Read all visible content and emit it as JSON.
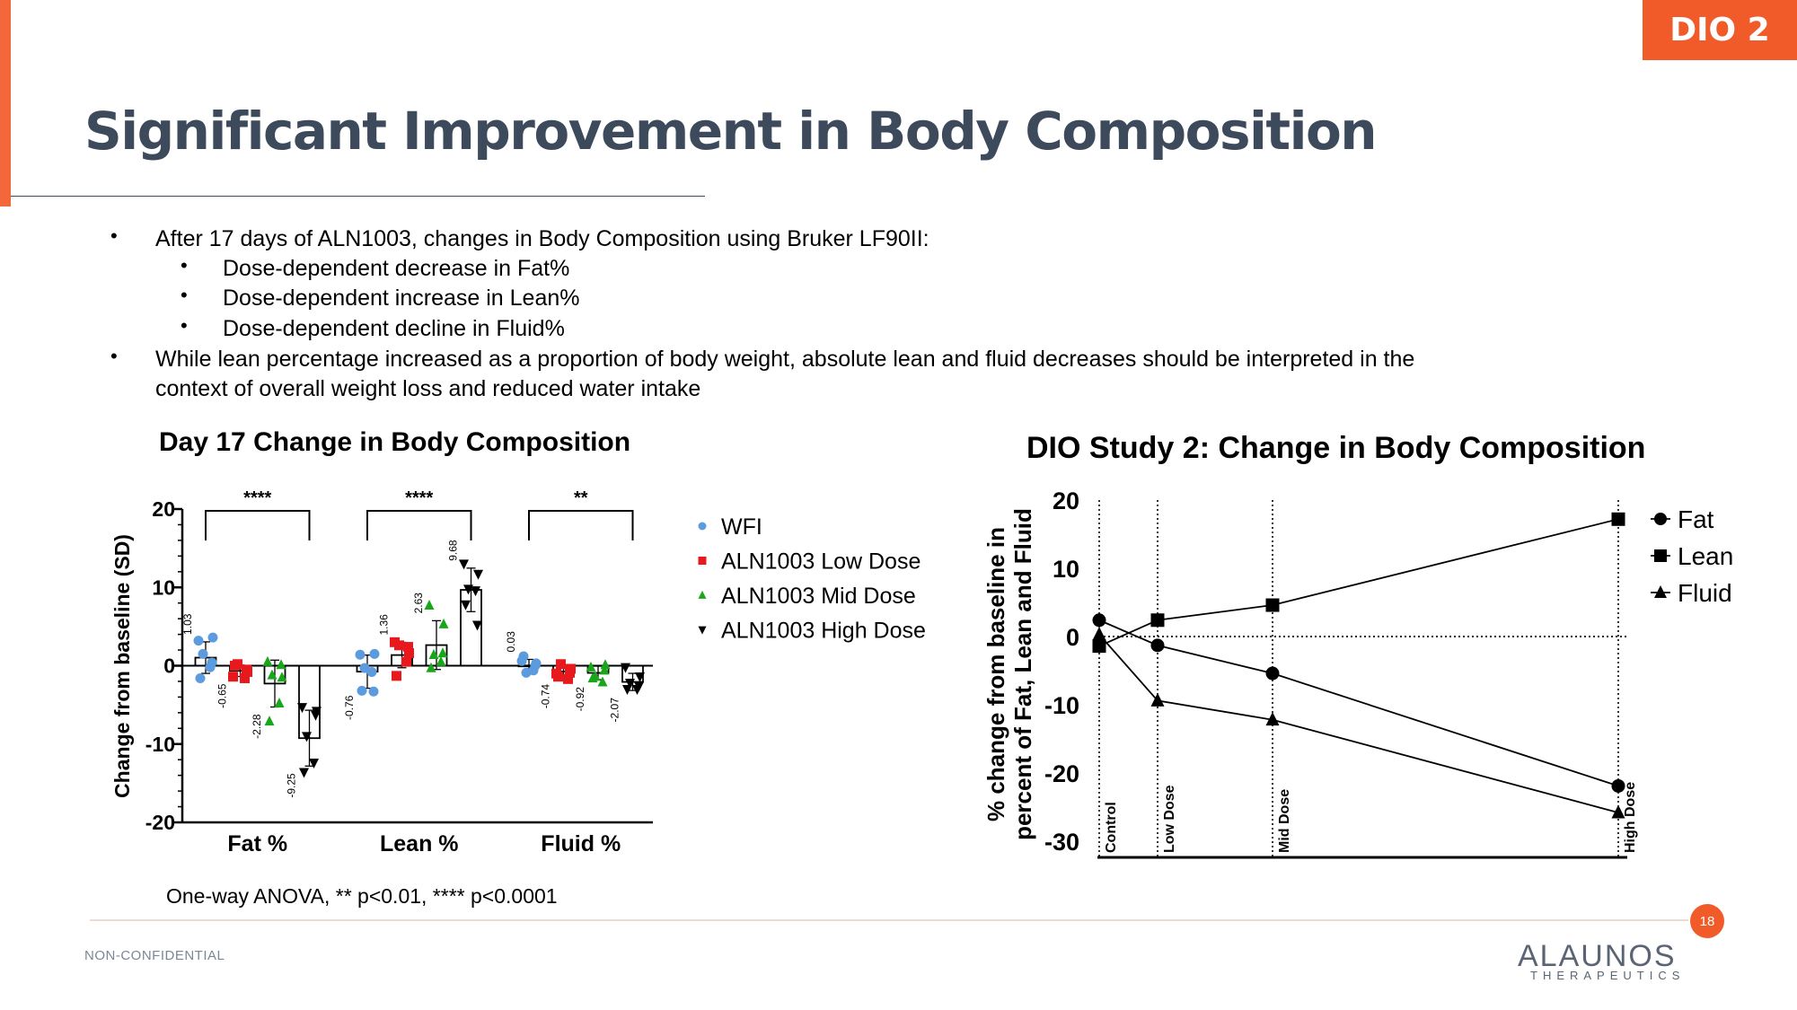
{
  "tag": "DIO 2",
  "title": "Significant Improvement in Body Composition",
  "bullets": {
    "b1": "After 17 days of ALN1003, changes in Body Composition using Bruker LF90II:",
    "s1": "Dose-dependent decrease in Fat%",
    "s2": "Dose-dependent increase in Lean%",
    "s3": "Dose-dependent decline in Fluid%",
    "b2_line1": "While lean percentage increased as a proportion of body weight, absolute lean and fluid decreases should be interpreted in the",
    "b2_line2": "context of overall weight loss and reduced water intake"
  },
  "footnote": "One-way ANOVA, ** p<0.01, **** p<0.0001",
  "footer": {
    "label": "NON-CONFIDENTIAL",
    "page": "18",
    "logo": "ALAUNOS",
    "logo_sub": "THERAPEUTICS"
  },
  "colors": {
    "accent": "#f15a29",
    "title": "#3d4a5c",
    "wfi": "#5b9bde",
    "low": "#e8191c",
    "mid": "#1aa61a",
    "high": "#000000"
  },
  "chart_data": [
    {
      "type": "bar",
      "title": "Day 17 Change in Body Composition",
      "ylabel": "Change from baseline (SD)",
      "ylim": [
        -20,
        20
      ],
      "yticks": [
        -20,
        -10,
        0,
        10,
        20
      ],
      "categories": [
        "Fat %",
        "Lean %",
        "Fluid %"
      ],
      "series": [
        {
          "name": "WFI",
          "marker": "circle",
          "values": [
            1.03,
            -0.76,
            0.03
          ],
          "points": [
            [
              3.2,
              3.6,
              1.5,
              -0.2,
              -1.6,
              0.4
            ],
            [
              1.4,
              1.5,
              -0.3,
              -0.8,
              -3.2,
              -3.3
            ],
            [
              0.6,
              0.3,
              -0.9,
              -0.6,
              1.2,
              0.0
            ]
          ]
        },
        {
          "name": "ALN1003 Low Dose",
          "marker": "square",
          "values": [
            -0.65,
            1.36,
            -0.74
          ],
          "points": [
            [
              -1.4,
              -0.8,
              0.2,
              -1.6,
              0.0,
              -0.5
            ],
            [
              3.0,
              1.6,
              2.6,
              0.5,
              -1.3,
              2.4
            ],
            [
              -1.0,
              -0.4,
              0.2,
              -1.7,
              -1.4,
              -0.9
            ]
          ]
        },
        {
          "name": "ALN1003 Mid Dose",
          "marker": "triangle",
          "values": [
            -2.28,
            2.63,
            -0.92
          ],
          "points": [
            [
              0.5,
              -1.5,
              -1.2,
              -4.8,
              -7.1,
              0.1
            ],
            [
              7.7,
              5.3,
              1.4,
              0.5,
              -0.3,
              1.6
            ],
            [
              -0.2,
              0.1,
              -1.4,
              -2.1,
              -1.6,
              -0.6
            ]
          ]
        },
        {
          "name": "ALN1003 High Dose",
          "marker": "triangle-down",
          "values": [
            -9.25,
            9.68,
            -2.07
          ],
          "points": [
            [
              -5.3,
              -5.8,
              -9.0,
              -12.4,
              -13.6,
              -6.3
            ],
            [
              13.0,
              11.7,
              9.8,
              9.6,
              7.8,
              5.2
            ],
            [
              -0.2,
              -1.4,
              -2.2,
              -3.0,
              -3.0,
              -2.6
            ]
          ]
        }
      ],
      "significance": [
        "****",
        "****",
        "**"
      ]
    },
    {
      "type": "line",
      "title": "DIO Study 2: Change in Body Composition",
      "ylabel": "% change from baseline in percent of Fat, Lean and Fluid",
      "ylim": [
        -30,
        20
      ],
      "yticks": [
        -30,
        -20,
        -10,
        0,
        10,
        20
      ],
      "x": [
        "Control",
        "Low Dose",
        "Mid Dose",
        "High Dose"
      ],
      "legend_position": "top-right",
      "series": [
        {
          "name": "Fat",
          "marker": "circle",
          "values": [
            2.4,
            -1.3,
            -5.4,
            -21.9
          ]
        },
        {
          "name": "Lean",
          "marker": "square",
          "values": [
            -1.4,
            2.4,
            4.6,
            17.2
          ]
        },
        {
          "name": "Fluid",
          "marker": "triangle",
          "values": [
            0.3,
            -9.4,
            -12.2,
            -25.8
          ]
        }
      ]
    }
  ]
}
